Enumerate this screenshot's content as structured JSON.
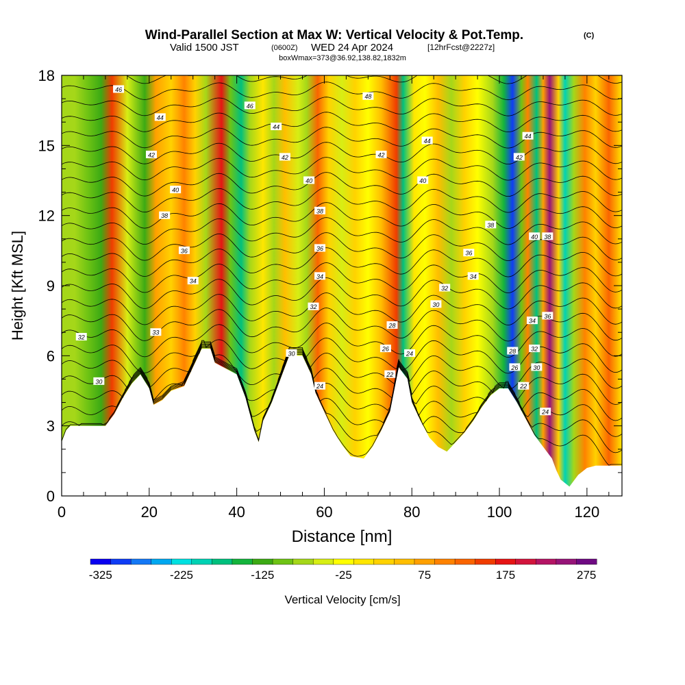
{
  "title": "Wind-Parallel Section at Max W: Vertical Velocity & Pot.Temp.",
  "title_mark": "(C)",
  "subtitle_valid": "Valid 1500 JST",
  "subtitle_z": "(0600Z)",
  "subtitle_date": "WED 24 Apr 2024",
  "subtitle_fcst": "[12hrFcst@2227z]",
  "subtitle_box": "boxWmax=373@36.92,138.82,1832m",
  "chart_data": {
    "type": "heatmap",
    "xlabel": "Distance [nm]",
    "ylabel": "Height [Kft MSL]",
    "xlim": [
      0,
      128
    ],
    "ylim": [
      0,
      18
    ],
    "xticks": [
      "0",
      "20",
      "40",
      "60",
      "80",
      "100",
      "120"
    ],
    "yticks": [
      "0",
      "3",
      "6",
      "9",
      "12",
      "15",
      "18"
    ],
    "grid": false,
    "colorbar": {
      "label": "Vertical Velocity [cm/s]",
      "tick_labels": [
        "-325",
        "-225",
        "-125",
        "-25",
        "75",
        "175",
        "275"
      ],
      "colors": [
        "#0a00f0",
        "#0f3cf5",
        "#1478f5",
        "#00a8f0",
        "#00e1e1",
        "#00d2b4",
        "#00c07d",
        "#14b43c",
        "#3caa14",
        "#6ec314",
        "#a5d719",
        "#d7ee14",
        "#ffff00",
        "#ffe600",
        "#ffd200",
        "#ffbe00",
        "#ffa000",
        "#ff8200",
        "#fa6400",
        "#f03c00",
        "#e61414",
        "#d2143c",
        "#b41464",
        "#961478",
        "#6e0a82"
      ]
    },
    "terrain_kft": [
      [
        0,
        2.3
      ],
      [
        1,
        2.8
      ],
      [
        2,
        3.0
      ],
      [
        8,
        3.0
      ],
      [
        10,
        3.0
      ],
      [
        12,
        3.5
      ],
      [
        14,
        4.2
      ],
      [
        16,
        4.8
      ],
      [
        18,
        5.2
      ],
      [
        20,
        4.6
      ],
      [
        21,
        3.9
      ],
      [
        23,
        4.1
      ],
      [
        25,
        4.5
      ],
      [
        28,
        4.7
      ],
      [
        30,
        5.5
      ],
      [
        32,
        6.3
      ],
      [
        34,
        6.3
      ],
      [
        35,
        5.7
      ],
      [
        37,
        5.5
      ],
      [
        40,
        5.2
      ],
      [
        42,
        4.2
      ],
      [
        44,
        2.8
      ],
      [
        45,
        2.3
      ],
      [
        46,
        3.2
      ],
      [
        48,
        4.0
      ],
      [
        50,
        5.0
      ],
      [
        52,
        6.0
      ],
      [
        55,
        6.0
      ],
      [
        57,
        5.2
      ],
      [
        58,
        4.4
      ],
      [
        60,
        3.6
      ],
      [
        62,
        2.8
      ],
      [
        64,
        2.2
      ],
      [
        66,
        1.7
      ],
      [
        69,
        1.6
      ],
      [
        71,
        2.1
      ],
      [
        73,
        2.8
      ],
      [
        75,
        3.6
      ],
      [
        77,
        5.5
      ],
      [
        79,
        5.0
      ],
      [
        80,
        4.0
      ],
      [
        82,
        3.2
      ],
      [
        84,
        2.5
      ],
      [
        86,
        2.1
      ],
      [
        88,
        1.9
      ],
      [
        90,
        2.3
      ],
      [
        92,
        2.7
      ],
      [
        94,
        3.2
      ],
      [
        96,
        3.8
      ],
      [
        98,
        4.3
      ],
      [
        100,
        4.6
      ],
      [
        102,
        4.6
      ],
      [
        104,
        4.0
      ],
      [
        106,
        3.3
      ],
      [
        108,
        2.6
      ],
      [
        110,
        2.1
      ],
      [
        112,
        1.6
      ],
      [
        113,
        1.1
      ],
      [
        114,
        0.7
      ],
      [
        116,
        0.4
      ],
      [
        118,
        0.9
      ],
      [
        120,
        1.2
      ],
      [
        122,
        1.3
      ],
      [
        124,
        1.3
      ],
      [
        128,
        1.3
      ]
    ],
    "velocity_bands": [
      {
        "x": 3,
        "w": -40
      },
      {
        "x": 6,
        "w": -70
      },
      {
        "x": 9,
        "w": -100
      },
      {
        "x": 11.5,
        "w": 180
      },
      {
        "x": 15,
        "w": -30
      },
      {
        "x": 19,
        "w": -110
      },
      {
        "x": 21.5,
        "w": 110
      },
      {
        "x": 25,
        "w": 60
      },
      {
        "x": 28,
        "w": 130
      },
      {
        "x": 30.5,
        "w": 40
      },
      {
        "x": 33,
        "w": -60
      },
      {
        "x": 36.5,
        "w": 200
      },
      {
        "x": 38.5,
        "w": -80
      },
      {
        "x": 41,
        "w": -160
      },
      {
        "x": 43,
        "w": -40
      },
      {
        "x": 46,
        "w": 30
      },
      {
        "x": 48.5,
        "w": -50
      },
      {
        "x": 51,
        "w": 90
      },
      {
        "x": 54,
        "w": -20
      },
      {
        "x": 56,
        "w": -40
      },
      {
        "x": 58.5,
        "w": 150
      },
      {
        "x": 61,
        "w": 60
      },
      {
        "x": 64,
        "w": -20
      },
      {
        "x": 67,
        "w": 40
      },
      {
        "x": 70,
        "w": -10
      },
      {
        "x": 73,
        "w": 90
      },
      {
        "x": 76.5,
        "w": 180
      },
      {
        "x": 78,
        "w": -150
      },
      {
        "x": 80.5,
        "w": 20
      },
      {
        "x": 83,
        "w": -10
      },
      {
        "x": 86,
        "w": 70
      },
      {
        "x": 89,
        "w": -40
      },
      {
        "x": 92,
        "w": 40
      },
      {
        "x": 95,
        "w": -10
      },
      {
        "x": 98.5,
        "w": -60
      },
      {
        "x": 101,
        "w": -140
      },
      {
        "x": 103,
        "w": -280
      },
      {
        "x": 105,
        "w": -90
      },
      {
        "x": 106.5,
        "w": 130
      },
      {
        "x": 108.5,
        "w": -150
      },
      {
        "x": 110,
        "w": 110
      },
      {
        "x": 111.5,
        "w": 280
      },
      {
        "x": 113.5,
        "w": 60
      },
      {
        "x": 115,
        "w": -170
      },
      {
        "x": 117,
        "w": -60
      },
      {
        "x": 119.5,
        "w": 140
      },
      {
        "x": 122,
        "w": 50
      },
      {
        "x": 125,
        "w": 160
      },
      {
        "x": 128,
        "w": 30
      }
    ],
    "theta_levels": [
      24,
      25,
      26,
      27,
      28,
      29,
      30,
      31,
      32,
      33,
      34,
      35,
      36,
      37,
      38,
      39,
      40,
      41,
      42,
      43,
      44,
      45,
      46,
      47,
      48
    ],
    "contour_labels": [
      {
        "text": "46",
        "x": 13,
        "y": 17.4
      },
      {
        "text": "44",
        "x": 22.5,
        "y": 16.2
      },
      {
        "text": "42",
        "x": 20.5,
        "y": 14.6
      },
      {
        "text": "40",
        "x": 26,
        "y": 13.1
      },
      {
        "text": "38",
        "x": 23.5,
        "y": 12.0
      },
      {
        "text": "36",
        "x": 28,
        "y": 10.5
      },
      {
        "text": "34",
        "x": 30,
        "y": 9.2
      },
      {
        "text": "32",
        "x": 4.5,
        "y": 6.8
      },
      {
        "text": "33",
        "x": 21.5,
        "y": 7.0
      },
      {
        "text": "30",
        "x": 8.5,
        "y": 4.9
      },
      {
        "text": "46",
        "x": 43,
        "y": 16.7
      },
      {
        "text": "44",
        "x": 49,
        "y": 15.8
      },
      {
        "text": "42",
        "x": 51,
        "y": 14.5
      },
      {
        "text": "40",
        "x": 56.5,
        "y": 13.5
      },
      {
        "text": "38",
        "x": 59,
        "y": 12.2
      },
      {
        "text": "36",
        "x": 59,
        "y": 10.6
      },
      {
        "text": "34",
        "x": 59,
        "y": 9.4
      },
      {
        "text": "32",
        "x": 57.5,
        "y": 8.1
      },
      {
        "text": "30",
        "x": 52.5,
        "y": 6.1
      },
      {
        "text": "24",
        "x": 59,
        "y": 4.7
      },
      {
        "text": "48",
        "x": 70,
        "y": 17.1
      },
      {
        "text": "44",
        "x": 83.5,
        "y": 15.2
      },
      {
        "text": "42",
        "x": 73,
        "y": 14.6
      },
      {
        "text": "40",
        "x": 82.5,
        "y": 13.5
      },
      {
        "text": "38",
        "x": 98,
        "y": 11.6
      },
      {
        "text": "36",
        "x": 93,
        "y": 10.4
      },
      {
        "text": "34",
        "x": 94,
        "y": 9.4
      },
      {
        "text": "32",
        "x": 87.5,
        "y": 8.9
      },
      {
        "text": "30",
        "x": 85.5,
        "y": 8.2
      },
      {
        "text": "28",
        "x": 75.5,
        "y": 7.3
      },
      {
        "text": "26",
        "x": 74,
        "y": 6.3
      },
      {
        "text": "24",
        "x": 79.5,
        "y": 6.1
      },
      {
        "text": "22",
        "x": 75,
        "y": 5.2
      },
      {
        "text": "44",
        "x": 106.5,
        "y": 15.4
      },
      {
        "text": "42",
        "x": 104.5,
        "y": 14.5
      },
      {
        "text": "40",
        "x": 108,
        "y": 11.1
      },
      {
        "text": "38",
        "x": 111,
        "y": 11.1
      },
      {
        "text": "36",
        "x": 111,
        "y": 7.7
      },
      {
        "text": "34",
        "x": 107.5,
        "y": 7.5
      },
      {
        "text": "32",
        "x": 108,
        "y": 6.3
      },
      {
        "text": "30",
        "x": 108.5,
        "y": 5.5
      },
      {
        "text": "28",
        "x": 103,
        "y": 6.2
      },
      {
        "text": "26",
        "x": 103.5,
        "y": 5.5
      },
      {
        "text": "22",
        "x": 105.5,
        "y": 4.7
      },
      {
        "text": "24",
        "x": 110.5,
        "y": 3.6
      }
    ]
  }
}
